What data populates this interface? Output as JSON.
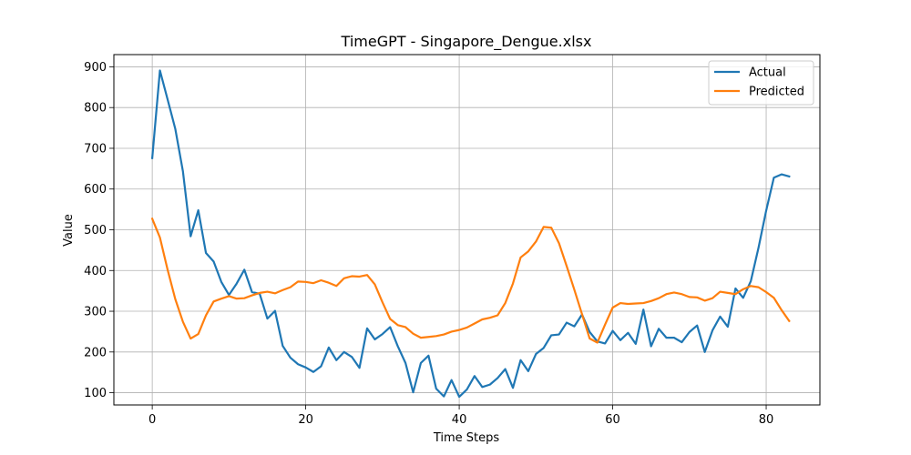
{
  "chart_data": {
    "type": "line",
    "title": "TimeGPT - Singapore_Dengue.xlsx",
    "xlabel": "Time Steps",
    "ylabel": "Value",
    "xlim": [
      -5,
      87
    ],
    "ylim": [
      70,
      930
    ],
    "xticks": [
      0,
      20,
      40,
      60,
      80
    ],
    "yticks": [
      100,
      200,
      300,
      400,
      500,
      600,
      700,
      800,
      900
    ],
    "grid": true,
    "legend": "top-right",
    "series": [
      {
        "name": "Actual",
        "color": "#1f77b4",
        "values": [
          676,
          891,
          820,
          748,
          643,
          484,
          548,
          443,
          422,
          372,
          340,
          368,
          402,
          347,
          343,
          282,
          301,
          215,
          186,
          170,
          162,
          151,
          165,
          211,
          180,
          200,
          188,
          161,
          258,
          231,
          244,
          261,
          214,
          173,
          101,
          173,
          191,
          110,
          91,
          131,
          90,
          108,
          141,
          114,
          120,
          136,
          158,
          112,
          180,
          153,
          195,
          210,
          241,
          243,
          272,
          263,
          292,
          249,
          226,
          221,
          252,
          229,
          247,
          220,
          304,
          214,
          257,
          235,
          235,
          224,
          249,
          265,
          200,
          253,
          287,
          262,
          356,
          333,
          374,
          456,
          547,
          628,
          636,
          631
        ]
      },
      {
        "name": "Predicted",
        "color": "#ff7f0e",
        "values": [
          527,
          481,
          402,
          330,
          274,
          233,
          244,
          290,
          324,
          331,
          337,
          331,
          332,
          339,
          345,
          348,
          344,
          352,
          359,
          373,
          372,
          369,
          376,
          370,
          362,
          381,
          386,
          385,
          389,
          366,
          322,
          281,
          266,
          261,
          245,
          235,
          237,
          239,
          243,
          250,
          254,
          260,
          270,
          280,
          284,
          290,
          320,
          368,
          432,
          447,
          471,
          507,
          505,
          467,
          411,
          353,
          293,
          233,
          223,
          267,
          309,
          320,
          318,
          319,
          320,
          325,
          332,
          342,
          346,
          342,
          335,
          334,
          326,
          332,
          348,
          345,
          342,
          354,
          362,
          359,
          347,
          333,
          303,
          276
        ]
      }
    ]
  }
}
